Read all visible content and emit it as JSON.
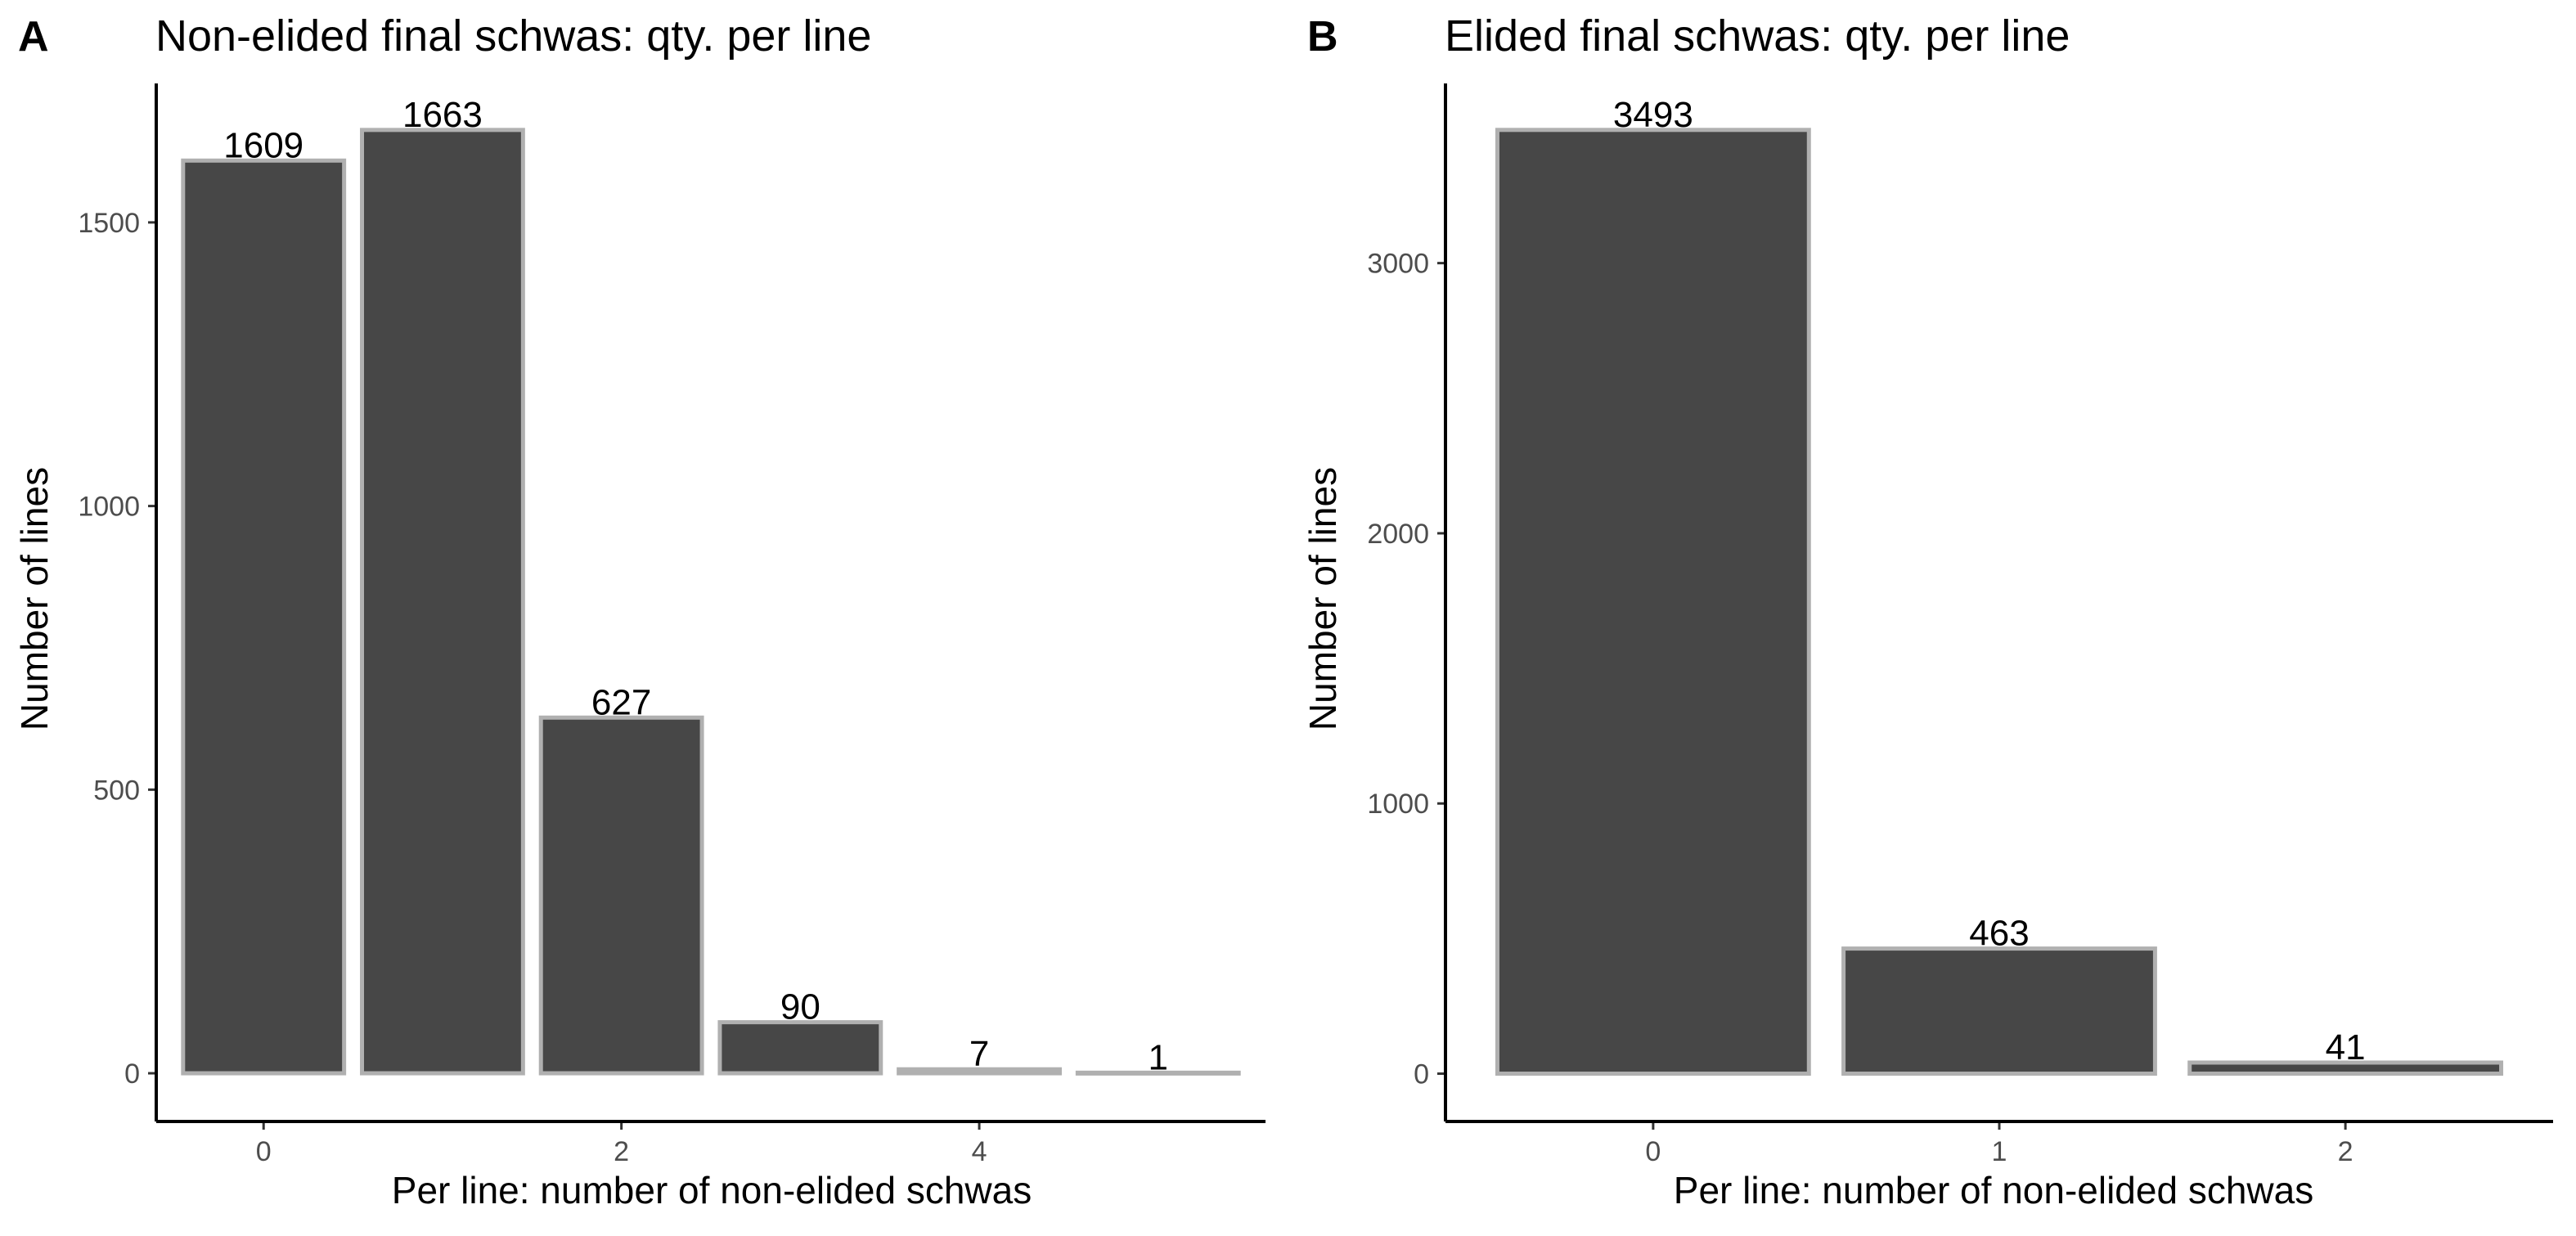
{
  "colors": {
    "bar_fill": "#474747",
    "bar_outline": "#b0b0b0",
    "axis": "#000000",
    "tick_text": "#4d4d4d"
  },
  "chart_data": [
    {
      "panel_tag": "A",
      "type": "bar",
      "title": "Non-elided final schwas: qty. per line",
      "xlabel": "Per line: number of non-elided schwas",
      "ylabel": "Number of lines",
      "categories": [
        0,
        1,
        2,
        3,
        4,
        5
      ],
      "values": [
        1609,
        1663,
        627,
        90,
        7,
        1
      ],
      "data_labels": [
        "1609",
        "1663",
        "627",
        "90",
        "7",
        "1"
      ],
      "x_ticks": [
        0,
        2,
        4
      ],
      "y_ticks": [
        0,
        500,
        1000,
        1500
      ],
      "ylim": [
        -85,
        1745
      ],
      "grid": false
    },
    {
      "panel_tag": "B",
      "type": "bar",
      "title": "Elided final schwas: qty. per line",
      "xlabel": "Per line: number of non-elided schwas",
      "ylabel": "Number of lines",
      "categories": [
        0,
        1,
        2
      ],
      "values": [
        3493,
        463,
        41
      ],
      "data_labels": [
        "3493",
        "463",
        "41"
      ],
      "x_ticks": [
        0,
        1,
        2
      ],
      "y_ticks": [
        0,
        1000,
        2000,
        3000
      ],
      "ylim": [
        -177,
        3665
      ],
      "grid": false
    }
  ]
}
